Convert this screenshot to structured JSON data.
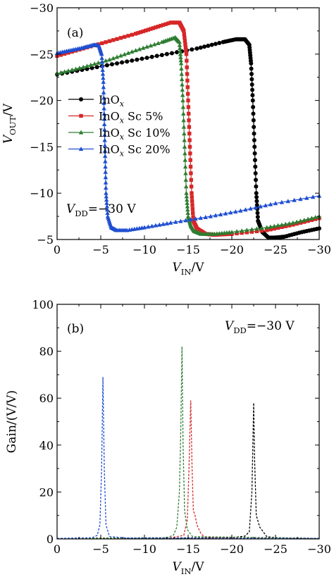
{
  "chart_data": [
    {
      "type": "line",
      "panel_label": "(a)",
      "xlabel": {
        "main": "V",
        "sub": "IN",
        "rest": "/V"
      },
      "ylabel": {
        "main": "V",
        "sub": "OUT",
        "rest": "/V"
      },
      "xlim": [
        0,
        -30
      ],
      "ylim": [
        -5,
        -30
      ],
      "xticks": [
        0,
        -5,
        -10,
        -15,
        -20,
        -25,
        -30
      ],
      "yticks": [
        -5,
        -10,
        -15,
        -20,
        -25,
        -30
      ],
      "xtick_labels": [
        "0",
        "−5",
        "−10",
        "−15",
        "−20",
        "−25",
        "−30"
      ],
      "ytick_labels": [
        "−5",
        "−10",
        "−15",
        "−20",
        "−25",
        "−30"
      ],
      "annotation": {
        "main": "V",
        "sub": "DD",
        "rest": "=−30 V"
      },
      "legend": {
        "placement": "center-left"
      },
      "series": [
        {
          "name": "InO",
          "name_sub": "x",
          "name_rest": "",
          "color": "#000000",
          "marker": "circle",
          "points": [
            [
              0,
              -22.8
            ],
            [
              -4,
              -23.5
            ],
            [
              -8,
              -24.2
            ],
            [
              -12,
              -24.9
            ],
            [
              -16,
              -25.6
            ],
            [
              -19,
              -26.3
            ],
            [
              -20.5,
              -26.6
            ],
            [
              -21.5,
              -26.6
            ],
            [
              -22,
              -26
            ],
            [
              -22.2,
              -24
            ],
            [
              -22.4,
              -20
            ],
            [
              -22.6,
              -15
            ],
            [
              -22.8,
              -10
            ],
            [
              -23,
              -7
            ],
            [
              -23.5,
              -5.8
            ],
            [
              -24.2,
              -5.2
            ],
            [
              -25,
              -5.2
            ],
            [
              -26,
              -5.3
            ],
            [
              -28,
              -5.8
            ],
            [
              -30,
              -6.2
            ]
          ]
        },
        {
          "name": "InO",
          "name_sub": "x",
          "name_rest": " Sc 5%",
          "color": "#d62728",
          "marker": "square",
          "points": [
            [
              0,
              -24.8
            ],
            [
              -3,
              -25.6
            ],
            [
              -6,
              -26.4
            ],
            [
              -9,
              -27.2
            ],
            [
              -11,
              -27.8
            ],
            [
              -13,
              -28.4
            ],
            [
              -14,
              -28.4
            ],
            [
              -14.5,
              -27.5
            ],
            [
              -14.8,
              -25
            ],
            [
              -15,
              -20
            ],
            [
              -15.2,
              -15
            ],
            [
              -15.4,
              -10
            ],
            [
              -15.6,
              -7
            ],
            [
              -16,
              -6.2
            ],
            [
              -17,
              -5.6
            ],
            [
              -18,
              -5.5
            ],
            [
              -20,
              -5.6
            ],
            [
              -24,
              -6
            ],
            [
              -27,
              -6.6
            ],
            [
              -30,
              -7.3
            ]
          ]
        },
        {
          "name": "InO",
          "name_sub": "x",
          "name_rest": " Sc 10%",
          "color": "#2e7d32",
          "marker": "triangle",
          "points": [
            [
              0,
              -22.9
            ],
            [
              -3,
              -23.6
            ],
            [
              -6,
              -24.4
            ],
            [
              -9,
              -25.4
            ],
            [
              -12,
              -26.3
            ],
            [
              -13.5,
              -26.8
            ],
            [
              -14,
              -26.3
            ],
            [
              -14.2,
              -24
            ],
            [
              -14.4,
              -20
            ],
            [
              -14.6,
              -15
            ],
            [
              -14.8,
              -10
            ],
            [
              -15,
              -7.5
            ],
            [
              -15.3,
              -6.5
            ],
            [
              -15.7,
              -5.9
            ],
            [
              -16.5,
              -5.6
            ],
            [
              -18,
              -5.6
            ],
            [
              -20,
              -5.8
            ],
            [
              -24,
              -6.3
            ],
            [
              -27,
              -6.8
            ],
            [
              -30,
              -7.5
            ]
          ]
        },
        {
          "name": "InO",
          "name_sub": "x",
          "name_rest": " Sc 20%",
          "color": "#1f4fd1",
          "marker": "triangle",
          "points": [
            [
              0,
              -25.1
            ],
            [
              -1.5,
              -25.4
            ],
            [
              -3,
              -25.7
            ],
            [
              -4.2,
              -26
            ],
            [
              -4.8,
              -25.9
            ],
            [
              -5.1,
              -25
            ],
            [
              -5.3,
              -22
            ],
            [
              -5.4,
              -18
            ],
            [
              -5.5,
              -14
            ],
            [
              -5.6,
              -10
            ],
            [
              -5.8,
              -7.5
            ],
            [
              -6.2,
              -6.3
            ],
            [
              -6.8,
              -6
            ],
            [
              -8,
              -6
            ],
            [
              -10,
              -6.3
            ],
            [
              -13,
              -6.8
            ],
            [
              -17,
              -7.4
            ],
            [
              -21,
              -8.1
            ],
            [
              -25,
              -8.9
            ],
            [
              -30,
              -9.7
            ]
          ]
        }
      ]
    },
    {
      "type": "line",
      "panel_label": "(b)",
      "xlabel": {
        "main": "V",
        "sub": "IN",
        "rest": "/V"
      },
      "ylabel": "Gain/(V/V)",
      "xlim": [
        0,
        -30
      ],
      "ylim": [
        0,
        100
      ],
      "xticks": [
        0,
        -5,
        -10,
        -15,
        -20,
        -25,
        -30
      ],
      "yticks": [
        0,
        20,
        40,
        60,
        80,
        100
      ],
      "xtick_labels": [
        "0",
        "−5",
        "−10",
        "−15",
        "−20",
        "−25",
        "−30"
      ],
      "ytick_labels": [
        "0",
        "20",
        "40",
        "60",
        "80",
        "100"
      ],
      "annotation": {
        "main": "V",
        "sub": "DD",
        "rest": "=−30 V"
      },
      "series": [
        {
          "color": "#000000",
          "points": [
            [
              0,
              0.2
            ],
            [
              -20,
              0.5
            ],
            [
              -21.5,
              1.2
            ],
            [
              -22,
              3
            ],
            [
              -22.3,
              20
            ],
            [
              -22.5,
              58
            ],
            [
              -22.6,
              35
            ],
            [
              -22.8,
              10
            ],
            [
              -23.2,
              5
            ],
            [
              -23.6,
              3
            ],
            [
              -24,
              1
            ],
            [
              -25,
              0.5
            ],
            [
              -30,
              0.2
            ]
          ]
        },
        {
          "color": "#d62728",
          "points": [
            [
              0,
              0.2
            ],
            [
              -13,
              0.5
            ],
            [
              -14.5,
              1.5
            ],
            [
              -14.9,
              8
            ],
            [
              -15.1,
              30
            ],
            [
              -15.3,
              59
            ],
            [
              -15.45,
              30
            ],
            [
              -15.6,
              12
            ],
            [
              -15.8,
              10
            ],
            [
              -16,
              6
            ],
            [
              -16.5,
              2
            ],
            [
              -17,
              0.6
            ],
            [
              -30,
              0.2
            ]
          ]
        },
        {
          "color": "#2e7d32",
          "points": [
            [
              0,
              0.2
            ],
            [
              -12.5,
              0.5
            ],
            [
              -13.3,
              1.5
            ],
            [
              -13.7,
              5
            ],
            [
              -14,
              20
            ],
            [
              -14.15,
              45
            ],
            [
              -14.3,
              82
            ],
            [
              -14.42,
              40
            ],
            [
              -14.6,
              12
            ],
            [
              -14.9,
              4
            ],
            [
              -15.5,
              1
            ],
            [
              -30,
              0.2
            ]
          ]
        },
        {
          "color": "#1f4fd1",
          "points": [
            [
              0,
              0.2
            ],
            [
              -4,
              0.5
            ],
            [
              -4.6,
              1.5
            ],
            [
              -4.9,
              6
            ],
            [
              -5.1,
              30
            ],
            [
              -5.25,
              69
            ],
            [
              -5.4,
              30
            ],
            [
              -5.6,
              6
            ],
            [
              -6,
              1
            ],
            [
              -8,
              0.4
            ],
            [
              -30,
              0.2
            ]
          ]
        }
      ]
    }
  ]
}
